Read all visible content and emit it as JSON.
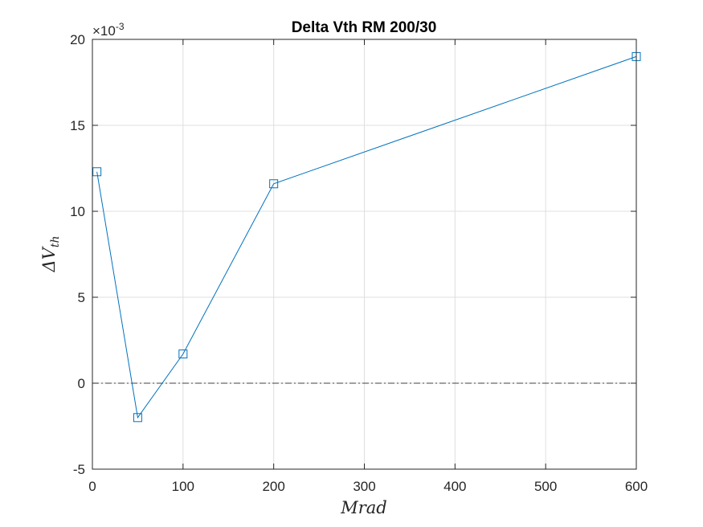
{
  "chart_data": {
    "type": "line",
    "title": "Delta Vth RM 200/30",
    "xlabel": "Mrad",
    "ylabel_prefix": "ΔV",
    "ylabel_subscript": "th",
    "y_exponent_base": "×10",
    "y_exponent_power": "-3",
    "xlim": [
      0,
      600
    ],
    "ylim": [
      -5,
      20
    ],
    "x_ticks": [
      "0",
      "100",
      "200",
      "300",
      "400",
      "500",
      "600"
    ],
    "y_ticks": [
      "-5",
      "0",
      "5",
      "10",
      "15",
      "20"
    ],
    "x_tick_values": [
      0,
      100,
      200,
      300,
      400,
      500,
      600
    ],
    "y_tick_values": [
      -5,
      0,
      5,
      10,
      15,
      20
    ],
    "grid": true,
    "reference_line_y": 0,
    "series": [
      {
        "marker": "square",
        "color": "#0072BD",
        "x": [
          5,
          50,
          100,
          200,
          600
        ],
        "y": [
          12.3,
          -2.0,
          1.7,
          11.6,
          19.0
        ]
      }
    ]
  }
}
